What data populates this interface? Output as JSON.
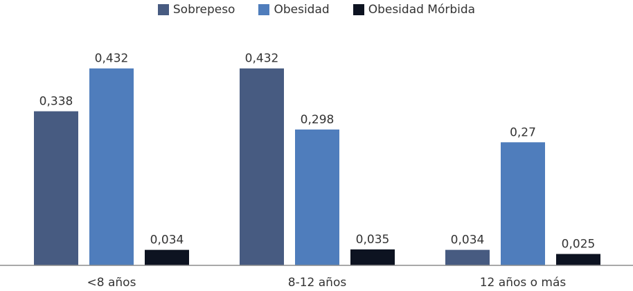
{
  "chart_data": {
    "type": "bar",
    "categories": [
      "<8 años",
      "8-12 años",
      "12 años o más"
    ],
    "series": [
      {
        "name": "Sobrepeso",
        "values": [
          "0,338",
          "0,432",
          "0,034"
        ],
        "color": "#475b81"
      },
      {
        "name": "Obesidad",
        "values": [
          "0,432",
          "0,298",
          "0,27"
        ],
        "color": "#4f7dbc"
      },
      {
        "name": "Obesidad Mórbida",
        "values": [
          "0,034",
          "0,035",
          "0,025"
        ],
        "color": "#0d1321"
      }
    ],
    "title": "",
    "xlabel": "",
    "ylabel": "",
    "ylim": [
      0,
      0.5
    ],
    "legend_position": "top-center",
    "grid": false
  }
}
